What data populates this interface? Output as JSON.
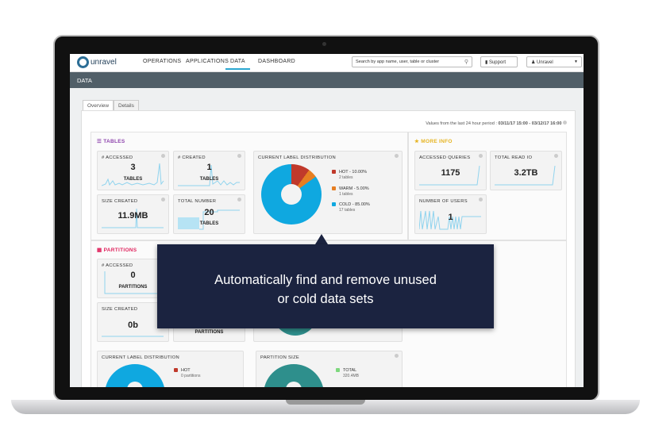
{
  "app": {
    "logo": "unravel"
  },
  "nav": {
    "items": [
      "OPERATIONS",
      "APPLICATIONS",
      "DATA",
      "DASHBOARD"
    ],
    "active": "DATA"
  },
  "search": {
    "placeholder": "Search by app name, user, table or cluster"
  },
  "support_label": "Support",
  "user_label": "Unravel",
  "page_title": "DATA",
  "tabs": [
    "Overview",
    "Details"
  ],
  "period": {
    "prefix": "Values from the last 24 hour period : ",
    "range": "03/11/17 15:00 - 03/12/17 16:00"
  },
  "tables": {
    "title": "TABLES",
    "accessed": {
      "label": "# ACCESSED",
      "value": "3",
      "unit": "TABLES"
    },
    "created": {
      "label": "# CREATED",
      "value": "1",
      "unit": "TABLES"
    },
    "size_created": {
      "label": "SIZE CREATED",
      "value": "11.9MB"
    },
    "total_number": {
      "label": "TOTAL NUMBER",
      "value": "20",
      "unit": "TABLES"
    },
    "distribution": {
      "label": "CURRENT LABEL DISTRIBUTION",
      "legend": [
        {
          "name": "HOT - 10.00%",
          "sub": "2 tables",
          "pct": 10,
          "color": "#c0392b"
        },
        {
          "name": "WARM - 5.00%",
          "sub": "1 tables",
          "pct": 5,
          "color": "#e67e22"
        },
        {
          "name": "COLD - 85.00%",
          "sub": "17 tables",
          "pct": 85,
          "color": "#0fa8e0"
        }
      ]
    }
  },
  "more_info": {
    "title": "MORE INFO",
    "accessed_queries": {
      "label": "ACCESSED QUERIES",
      "value": "1175"
    },
    "total_read_io": {
      "label": "TOTAL READ IO",
      "value": "3.2TB"
    },
    "users": {
      "label": "NUMBER OF USERS",
      "value": "1"
    }
  },
  "partitions": {
    "title": "PARTITIONS",
    "accessed": {
      "label": "# ACCESSED",
      "value": "0",
      "unit": "PARTITIONS"
    },
    "size_created": {
      "label": "SIZE CREATED",
      "value": "0b"
    },
    "hidden_unit": "PARTITIONS",
    "distribution": {
      "label": "CURRENT LABEL DISTRIBUTION",
      "legend": [
        {
          "name": "HOT",
          "sub": "0 partitions",
          "color": "#c0392b"
        }
      ]
    },
    "size": {
      "label": "PARTITION SIZE",
      "legend": [
        {
          "name": "TOTAL",
          "sub": "320.4MB",
          "color": "#7ed87e"
        }
      ]
    }
  },
  "tooltip": {
    "line1": "Automatically find and remove unused",
    "line2": "or cold data sets"
  },
  "colors": {
    "accent": "#2aa7d1",
    "subbar": "#515f68",
    "tooltip": "#1b2340",
    "tables_title": "#8e44ad",
    "more_info_title": "#e6b422",
    "partitions_title": "#e0245e",
    "teal": "#2e8f8c"
  }
}
